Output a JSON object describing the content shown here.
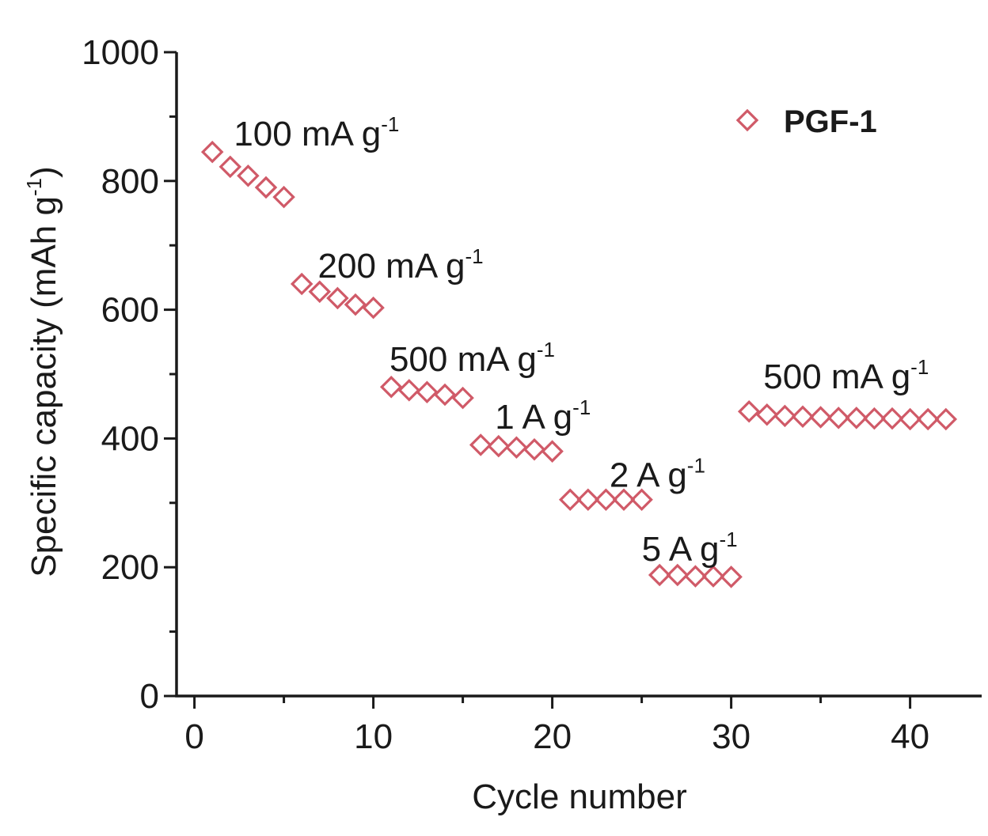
{
  "chart_data": {
    "type": "scatter",
    "xlabel": "Cycle number",
    "ylabel": "Specific capacity (mAh g",
    "ylabel_sup": "-1",
    "ylabel_close": ")",
    "xlim": [
      -1,
      44
    ],
    "ylim": [
      0,
      1000
    ],
    "xticks": [
      0,
      10,
      20,
      30,
      40
    ],
    "yticks": [
      0,
      200,
      400,
      600,
      800,
      1000
    ],
    "grid": false,
    "legend_position": "top-right",
    "marker": "open-diamond",
    "colors": {
      "series": "#d05a68",
      "axis": "#1a1a1a"
    },
    "series": [
      {
        "name": "PGF-1",
        "x": [
          1,
          2,
          3,
          4,
          5,
          6,
          7,
          8,
          9,
          10,
          11,
          12,
          13,
          14,
          15,
          16,
          17,
          18,
          19,
          20,
          21,
          22,
          23,
          24,
          25,
          26,
          27,
          28,
          29,
          30,
          31,
          32,
          33,
          34,
          35,
          36,
          37,
          38,
          39,
          40,
          41,
          42
        ],
        "y": [
          845,
          822,
          808,
          790,
          775,
          640,
          628,
          618,
          608,
          603,
          480,
          475,
          472,
          468,
          463,
          390,
          388,
          386,
          383,
          380,
          305,
          305,
          305,
          305,
          305,
          188,
          188,
          186,
          186,
          185,
          442,
          437,
          435,
          434,
          433,
          432,
          432,
          431,
          431,
          430,
          430,
          430
        ]
      }
    ],
    "annotations": [
      {
        "text": "100 mA g",
        "sup": "-1",
        "x": 2.2,
        "y": 855
      },
      {
        "text": "200 mA g",
        "sup": "-1",
        "x": 6.9,
        "y": 650
      },
      {
        "text": "500 mA g",
        "sup": "-1",
        "x": 10.9,
        "y": 505
      },
      {
        "text": "1 A g",
        "sup": "-1",
        "x": 16.8,
        "y": 415
      },
      {
        "text": "2 A g",
        "sup": "-1",
        "x": 23.2,
        "y": 325
      },
      {
        "text": "5 A g",
        "sup": "-1",
        "x": 25.0,
        "y": 210
      },
      {
        "text": "500 mA g",
        "sup": "-1",
        "x": 31.8,
        "y": 478
      }
    ]
  }
}
